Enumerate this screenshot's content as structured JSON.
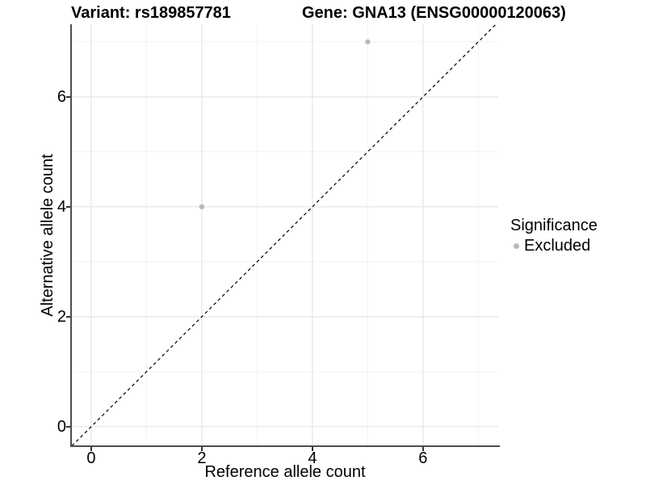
{
  "titles": {
    "left": "Variant: rs189857781",
    "right": "Gene: GNA13 (ENSG00000120063)"
  },
  "chart_data": {
    "type": "scatter",
    "title_left": "Variant: rs189857781",
    "title_right": "Gene: GNA13 (ENSG00000120063)",
    "xlabel": "Reference allele count",
    "ylabel": "Alternative allele count",
    "xlim": [
      -0.35,
      7.36
    ],
    "ylim": [
      -0.37,
      7.32
    ],
    "x_ticks": [
      0,
      2,
      4,
      6
    ],
    "y_ticks": [
      0,
      2,
      4,
      6
    ],
    "x_minor_ticks": [
      1,
      3,
      5,
      7
    ],
    "y_minor_ticks": [
      1,
      3,
      5,
      7
    ],
    "grid": true,
    "points": [
      {
        "x": 2,
        "y": 4,
        "significance": "Excluded"
      },
      {
        "x": 5,
        "y": 7,
        "significance": "Excluded"
      }
    ],
    "identity_line": {
      "slope": 1,
      "intercept": 0,
      "style": "dashed",
      "color": "#000000"
    },
    "legend": {
      "title": "Significance",
      "position": "right",
      "entries": [
        {
          "label": "Excluded",
          "color": "#b8b8b8"
        }
      ]
    }
  },
  "colors": {
    "point": "#b8b8b8",
    "axis_line": "#4d4d4d",
    "tick": "#333333",
    "grid_major": "#e8e8e8",
    "grid_minor": "#f3f3f3",
    "dashed_line": "#000000",
    "text": "#000000"
  }
}
